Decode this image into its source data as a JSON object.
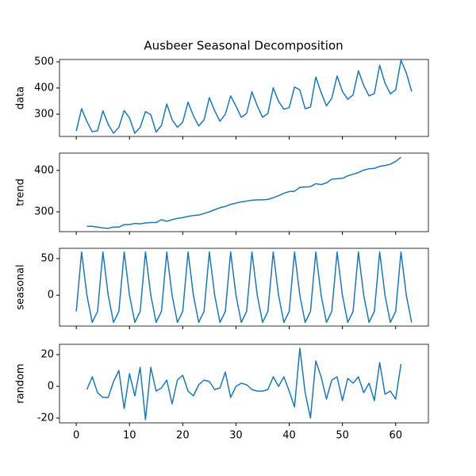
{
  "chart_data": [
    {
      "type": "line",
      "title": "Ausbeer Seasonal Decomposition",
      "ylabel": "data",
      "color": "#1f77b4",
      "x": [
        0,
        1,
        2,
        3,
        4,
        5,
        6,
        7,
        8,
        9,
        10,
        11,
        12,
        13,
        14,
        15,
        16,
        17,
        18,
        19,
        20,
        21,
        22,
        23,
        24,
        25,
        26,
        27,
        28,
        29,
        30,
        31,
        32,
        33,
        34,
        35,
        36,
        37,
        38,
        39,
        40,
        41,
        42,
        43,
        44,
        45,
        46,
        47,
        48,
        49,
        50,
        51,
        52,
        53,
        54,
        55,
        56,
        57,
        58,
        59,
        60,
        61,
        62,
        63
      ],
      "values": [
        236,
        321,
        272,
        233,
        237,
        313,
        261,
        227,
        250,
        314,
        286,
        227,
        250,
        310,
        298,
        232,
        257,
        339,
        279,
        250,
        270,
        346,
        294,
        255,
        278,
        363,
        313,
        273,
        300,
        370,
        331,
        288,
        303,
        386,
        332,
        288,
        303,
        401,
        349,
        319,
        325,
        404,
        393,
        321,
        327,
        442,
        383,
        332,
        361,
        446,
        387,
        357,
        374,
        466,
        410,
        370,
        379,
        487,
        419,
        378,
        393,
        506,
        458,
        387
      ],
      "ylim": [
        215,
        509
      ],
      "yticks": [
        300,
        400,
        500
      ]
    },
    {
      "type": "line",
      "ylabel": "trend",
      "color": "#1f77b4",
      "x": [
        0,
        1,
        2,
        3,
        4,
        5,
        6,
        7,
        8,
        9,
        10,
        11,
        12,
        13,
        14,
        15,
        16,
        17,
        18,
        19,
        20,
        21,
        22,
        23,
        24,
        25,
        26,
        27,
        28,
        29,
        30,
        31,
        32,
        33,
        34,
        35,
        36,
        37,
        38,
        39,
        40,
        41,
        42,
        43,
        44,
        45,
        46,
        47,
        48,
        49,
        50,
        51,
        52,
        53,
        54,
        55,
        56,
        57,
        58,
        59,
        60,
        61,
        62,
        63
      ],
      "values": [
        null,
        null,
        265,
        265,
        263,
        261,
        260,
        263,
        263,
        269,
        269,
        272,
        271,
        273,
        274,
        274,
        281,
        277,
        281,
        284,
        286,
        289,
        291,
        292,
        296,
        300,
        305,
        310,
        313,
        318,
        321,
        324,
        326,
        328,
        329,
        329,
        330,
        334,
        339,
        345,
        349,
        350,
        359,
        360,
        361,
        368,
        366,
        370,
        379,
        380,
        381,
        387,
        391,
        395,
        401,
        404,
        405,
        410,
        412,
        415,
        422,
        432,
        null,
        null
      ],
      "ylim": [
        252,
        442
      ],
      "yticks": [
        300,
        400
      ]
    },
    {
      "type": "line",
      "ylabel": "seasonal",
      "color": "#1f77b4",
      "x": [
        0,
        1,
        2,
        3,
        4,
        5,
        6,
        7,
        8,
        9,
        10,
        11,
        12,
        13,
        14,
        15,
        16,
        17,
        18,
        19,
        20,
        21,
        22,
        23,
        24,
        25,
        26,
        27,
        28,
        29,
        30,
        31,
        32,
        33,
        34,
        35,
        36,
        37,
        38,
        39,
        40,
        41,
        42,
        43,
        44,
        45,
        46,
        47,
        48,
        49,
        50,
        51,
        52,
        53,
        54,
        55,
        56,
        57,
        58,
        59,
        60,
        61,
        62,
        63
      ],
      "values": [
        -22,
        59,
        0,
        -37,
        -22,
        59,
        0,
        -37,
        -22,
        59,
        0,
        -37,
        -22,
        59,
        0,
        -37,
        -22,
        59,
        0,
        -37,
        -22,
        59,
        0,
        -37,
        -22,
        59,
        0,
        -37,
        -22,
        59,
        0,
        -37,
        -22,
        59,
        0,
        -37,
        -22,
        59,
        0,
        -37,
        -22,
        59,
        0,
        -37,
        -22,
        59,
        0,
        -37,
        -22,
        59,
        0,
        -37,
        -22,
        59,
        0,
        -37,
        -22,
        59,
        0,
        -37,
        -22,
        59,
        0,
        -37
      ],
      "ylim": [
        -42,
        64
      ],
      "yticks": [
        0,
        50
      ]
    },
    {
      "type": "line",
      "ylabel": "random",
      "color": "#1f77b4",
      "x": [
        0,
        1,
        2,
        3,
        4,
        5,
        6,
        7,
        8,
        9,
        10,
        11,
        12,
        13,
        14,
        15,
        16,
        17,
        18,
        19,
        20,
        21,
        22,
        23,
        24,
        25,
        26,
        27,
        28,
        29,
        30,
        31,
        32,
        33,
        34,
        35,
        36,
        37,
        38,
        39,
        40,
        41,
        42,
        43,
        44,
        45,
        46,
        47,
        48,
        49,
        50,
        51,
        52,
        53,
        54,
        55,
        56,
        57,
        58,
        59,
        60,
        61,
        62,
        63
      ],
      "values": [
        null,
        null,
        -2,
        6,
        -4,
        -7,
        -7,
        3,
        10,
        -14,
        8,
        -6,
        12,
        -21,
        12,
        -3,
        -1,
        4,
        -11,
        4,
        7,
        -3,
        -6,
        1,
        4,
        3,
        -2,
        -1,
        9,
        -7,
        0,
        2,
        1,
        -2,
        -3,
        -3,
        -2,
        6,
        0,
        6,
        -3,
        -13,
        24,
        -4,
        -20,
        16,
        6,
        -8,
        4,
        6,
        -9,
        5,
        2,
        6,
        -4,
        2,
        -9,
        15,
        -5,
        -3,
        -8,
        14,
        null,
        null
      ],
      "ylim": [
        -23,
        26.5
      ],
      "yticks": [
        -20,
        0,
        20
      ],
      "xlim": [
        -3.15,
        66.15
      ],
      "xticks": [
        0,
        10,
        20,
        30,
        40,
        50,
        60
      ]
    }
  ]
}
